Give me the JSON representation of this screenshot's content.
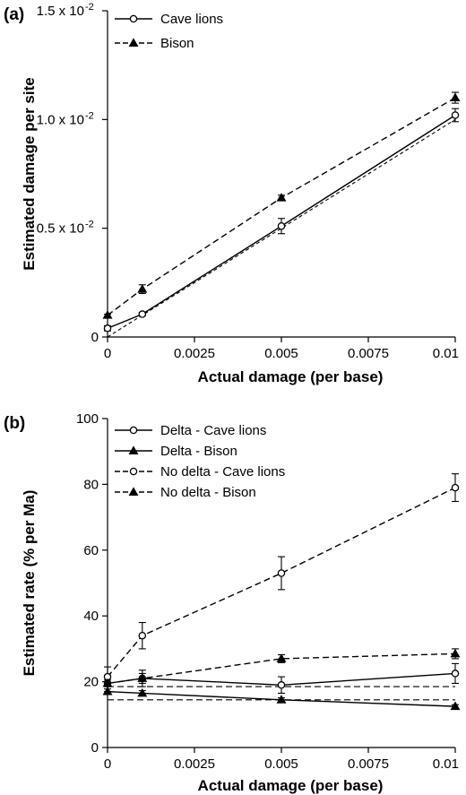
{
  "chart_data": [
    {
      "type": "line",
      "panel_label": "(a)",
      "xlabel": "Actual damage (per base)",
      "ylabel": "Estimated damage per site",
      "xlim": [
        0,
        0.01
      ],
      "ylim": [
        0,
        0.015
      ],
      "x_ticks": [
        0,
        0.0025,
        0.005,
        0.0075,
        0.01
      ],
      "x_tick_labels": [
        "0",
        "0.0025",
        "0.005",
        "0.0075",
        "0.01"
      ],
      "y_ticks": [
        0,
        0.005,
        0.01,
        0.015
      ],
      "y_tick_labels": [
        "0",
        "0.5 x 10",
        "1.0 x 10",
        "1.5 x 10"
      ],
      "y_tick_label_exponents": [
        "",
        "-2",
        "-2",
        "-2"
      ],
      "grid": false,
      "legend_position": "top-left",
      "reference_line": {
        "x": [
          0,
          0.01
        ],
        "y": [
          0,
          0.01
        ],
        "style": "dashed"
      },
      "series": [
        {
          "name": "Cave lions",
          "marker": "open-circle",
          "line": "solid",
          "x": [
            0,
            0.001,
            0.005,
            0.01
          ],
          "y": [
            0.0004,
            0.00105,
            0.0051,
            0.0102
          ],
          "err": [
            0.00012,
            8e-05,
            0.00035,
            0.0003
          ]
        },
        {
          "name": "Bison",
          "marker": "filled-triangle",
          "line": "dashed",
          "x": [
            0,
            0.001,
            0.005,
            0.01
          ],
          "y": [
            0.001,
            0.0022,
            0.0064,
            0.011
          ],
          "err": [
            5e-05,
            0.0002,
            0.00012,
            0.00025
          ]
        }
      ]
    },
    {
      "type": "line",
      "panel_label": "(b)",
      "xlabel": "Actual damage (per base)",
      "ylabel": "Estimated rate (% per Ma)",
      "xlim": [
        0,
        0.01
      ],
      "ylim": [
        0,
        100
      ],
      "x_ticks": [
        0,
        0.0025,
        0.005,
        0.0075,
        0.01
      ],
      "x_tick_labels": [
        "0",
        "0.0025",
        "0.005",
        "0.0075",
        "0.01"
      ],
      "y_ticks": [
        0,
        20,
        40,
        60,
        80,
        100
      ],
      "y_tick_labels": [
        "0",
        "20",
        "40",
        "60",
        "80",
        "100"
      ],
      "grid": false,
      "legend_position": "top-left",
      "series": [
        {
          "name": "Delta - Cave lions",
          "marker": "open-circle",
          "line": "solid",
          "x": [
            0,
            0.001,
            0.005,
            0.01
          ],
          "y": [
            19.5,
            21,
            19,
            22.5
          ],
          "err": [
            2.5,
            2.5,
            2.5,
            3
          ]
        },
        {
          "name": "Delta - Bison",
          "marker": "filled-triangle",
          "line": "solid",
          "x": [
            0,
            0.001,
            0.005,
            0.01
          ],
          "y": [
            17,
            16.5,
            14.5,
            12.5
          ],
          "err": [
            0.8,
            0.8,
            0.6,
            0.5
          ]
        },
        {
          "name": "No delta - Cave lions",
          "marker": "open-circle",
          "line": "dashed",
          "x": [
            0,
            0.001,
            0.005,
            0.01
          ],
          "y": [
            21.5,
            34,
            53,
            79
          ],
          "err": [
            3,
            4,
            5,
            4.2
          ]
        },
        {
          "name": "No delta - Bison",
          "marker": "filled-triangle",
          "line": "dashed",
          "x": [
            0,
            0.001,
            0.005,
            0.01
          ],
          "y": [
            19.5,
            21,
            27,
            28.5
          ],
          "err": [
            1,
            1.5,
            1.2,
            1.5
          ]
        }
      ],
      "horizontal_lines": [
        {
          "y": 18.5,
          "x": [
            0,
            0.01
          ],
          "style": "dashed"
        },
        {
          "y": 14.5,
          "x": [
            0,
            0.01
          ],
          "style": "dashed"
        }
      ]
    }
  ]
}
